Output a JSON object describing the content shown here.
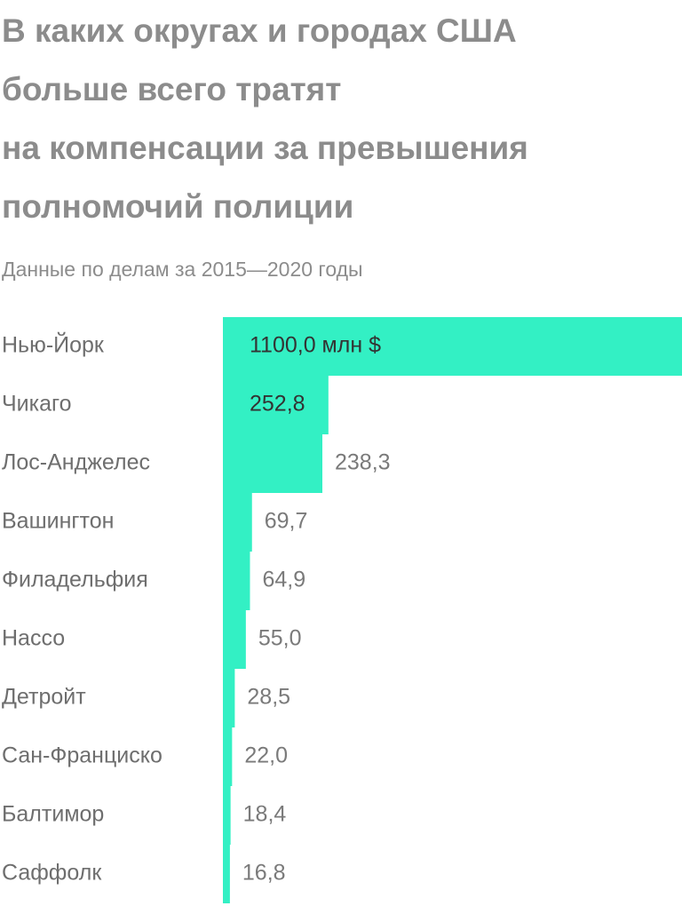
{
  "chart_data": {
    "type": "bar",
    "orientation": "horizontal",
    "title": [
      "В каких округах и городах США",
      "больше всего тратят",
      "на компенсации за превышения",
      "полномочий полиции"
    ],
    "subtitle": "Данные по делам за 2015—2020 годы",
    "categories": [
      "Нью-Йорк",
      "Чикаго",
      "Лос-Анджелес",
      "Вашингтон",
      "Филадельфия",
      "Нассо",
      "Детройт",
      "Сан-Франциско",
      "Балтимор",
      "Саффолк"
    ],
    "values": [
      1100,
      252.8,
      238.3,
      69.7,
      64.9,
      55,
      28.5,
      22,
      18.4,
      16.8
    ],
    "value_labels": [
      "1100,0 млн $",
      "252,8",
      "238,3",
      "69,7",
      "64,9",
      "55,0",
      "28,5",
      "22,0",
      "18,4",
      "16,8"
    ],
    "color": "#33f0c4",
    "xlim": [
      0,
      1100
    ]
  }
}
